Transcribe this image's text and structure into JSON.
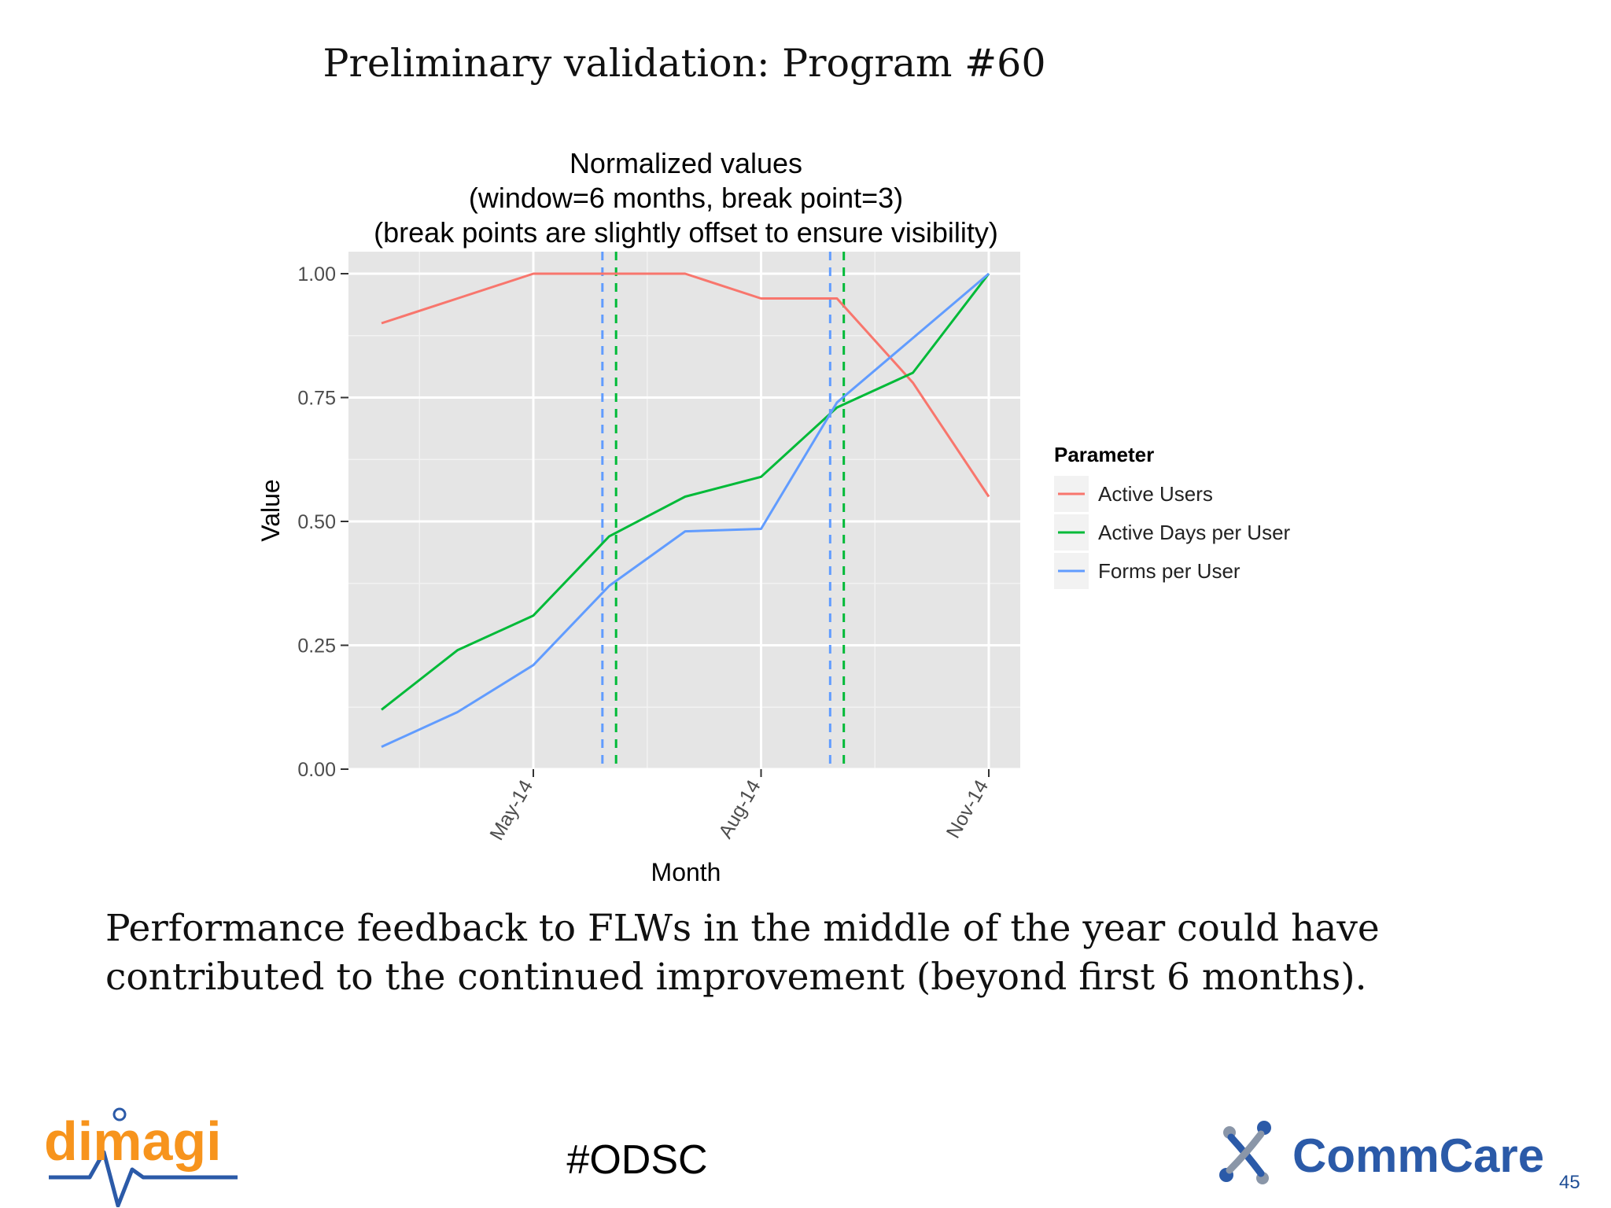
{
  "slide": {
    "title": "Preliminary validation: Program #60",
    "caption_line1": "Performance feedback to FLWs in the middle of the year could have",
    "caption_line2": "contributed to the continued improvement (beyond first 6 months).",
    "hashtag": "#ODSC",
    "page_number": "45",
    "logo_left_text": "dimagi",
    "logo_right_text": "CommCare"
  },
  "chart_data": {
    "type": "line",
    "title_lines": [
      "Normalized values",
      "(window=6 months, break point=3)",
      "(break points are slightly offset to ensure visibility)"
    ],
    "xlabel": "Month",
    "ylabel": "Value",
    "x": [
      "Mar-14",
      "Apr-14",
      "May-14",
      "Jun-14",
      "Jul-14",
      "Aug-14",
      "Sep-14",
      "Oct-14",
      "Nov-14"
    ],
    "x_tick_labels": [
      "May-14",
      "Aug-14",
      "Nov-14"
    ],
    "y_ticks": [
      0.0,
      0.25,
      0.5,
      0.75,
      1.0
    ],
    "y_tick_labels": [
      "0.00",
      "0.25",
      "0.50",
      "0.75",
      "1.00"
    ],
    "ylim": [
      0,
      1
    ],
    "legend": {
      "title": "Parameter",
      "position": "right"
    },
    "grid": true,
    "series": [
      {
        "name": "Active Users",
        "color": "#f8766d",
        "values": [
          0.9,
          0.95,
          1.0,
          1.0,
          1.0,
          0.95,
          0.95,
          0.78,
          0.55
        ]
      },
      {
        "name": "Active Days per User",
        "color": "#00ba38",
        "values": [
          0.12,
          0.24,
          0.31,
          0.47,
          0.55,
          0.59,
          0.73,
          0.8,
          1.0
        ]
      },
      {
        "name": "Forms per User",
        "color": "#619cff",
        "values": [
          0.045,
          0.115,
          0.21,
          0.37,
          0.48,
          0.485,
          0.74,
          0.87,
          1.0
        ]
      }
    ],
    "break_points": [
      {
        "x": "Jun-14",
        "color": "#619cff",
        "offset": -0.09
      },
      {
        "x": "Jun-14",
        "color": "#00ba38",
        "offset": 0.09
      },
      {
        "x": "Sep-14",
        "color": "#619cff",
        "offset": -0.09
      },
      {
        "x": "Sep-14",
        "color": "#00ba38",
        "offset": 0.09
      }
    ]
  }
}
